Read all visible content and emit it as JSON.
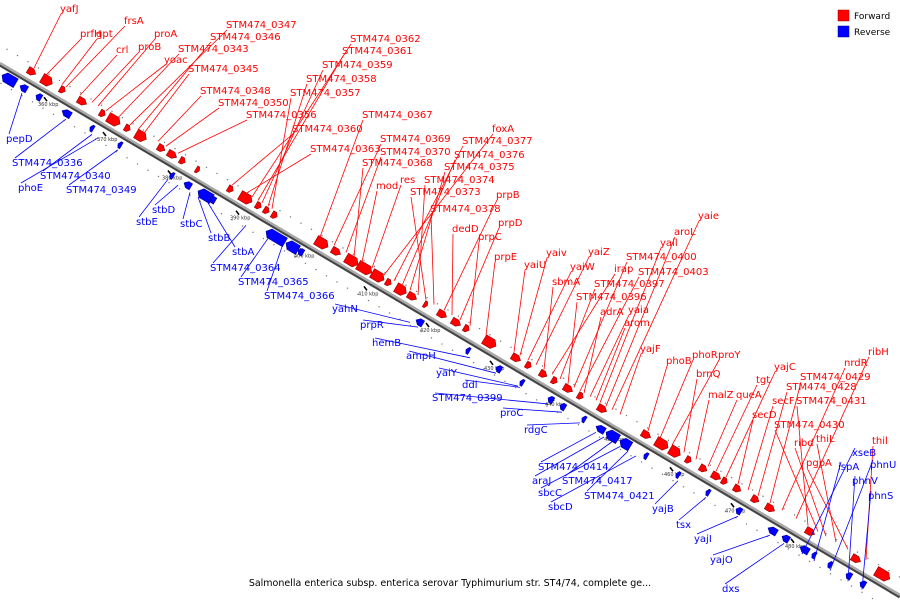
{
  "legend": {
    "forward_label": "Forward",
    "reverse_label": "Reverse",
    "forward_color": "#ff0000",
    "reverse_color": "#0000ff"
  },
  "backbone_color": "#888888",
  "caption": "Salmonella enterica subsp. enterica serovar Typhimurium str. ST4/74, complete ge...",
  "scale_ticks": [
    "360 kbp",
    "370 kbp",
    "380 kbp",
    "390 kbp",
    "400 kbp",
    "410 kbp",
    "420 kbp",
    "430 kbp",
    "440 kbp",
    "450 kbp",
    "460 kbp",
    "470 kbp",
    "480 kbp"
  ],
  "forward_genes": [
    "yafJ",
    "prfH",
    "gpt",
    "frsA",
    "crl",
    "proB",
    "proA",
    "yoac",
    "STM474_0343",
    "STM474_0347",
    "STM474_0346",
    "STM474_0345",
    "STM474_0348",
    "STM474_0350",
    "STM474_0356",
    "STM474_0360",
    "STM474_0363",
    "STM474_0362",
    "STM474_0361",
    "STM474_0359",
    "STM474_0358",
    "STM474_0357",
    "STM474_0367",
    "STM474_0369",
    "STM474_0370",
    "STM474_0368",
    "mod",
    "res",
    "foxA",
    "STM474_0377",
    "STM474_0376",
    "STM474_0375",
    "STM474_0374",
    "STM474_0373",
    "STM474_0378",
    "prpB",
    "dedD",
    "prpD",
    "prpC",
    "prpE",
    "yaiU",
    "yaiv",
    "yaiW",
    "yaiZ",
    "sbmA",
    "irap",
    "STM474_0397",
    "STM474_0396",
    "STM474_0400",
    "STM474_0403",
    "adrA",
    "yaia",
    "arom",
    "yail",
    "aroL",
    "yaie",
    "yajF",
    "phoB",
    "phoR",
    "proY",
    "brnQ",
    "malZ",
    "queA",
    "tgt",
    "yajC",
    "secD",
    "secF",
    "STM474_0428",
    "STM474_0429",
    "nrdR",
    "ribH",
    "STM474_0431",
    "STM474_0430",
    "ribd",
    "thiL",
    "pgpA",
    "thil"
  ],
  "reverse_genes": [
    "pepD",
    "STM474_0336",
    "STM474_0340",
    "phoE",
    "STM474_0349",
    "stbE",
    "stbD",
    "stbC",
    "stbB",
    "stbA",
    "STM474_0364",
    "STM474_0365",
    "STM474_0366",
    "yahN",
    "prpR",
    "hemB",
    "ampH",
    "yaiY",
    "ddl",
    "STM474_0399",
    "proC",
    "rdgC",
    "STM474_0414",
    "araJ",
    "STM474_0417",
    "sbcC",
    "STM474_0421",
    "sbcD",
    "yajB",
    "tsx",
    "yajI",
    "yajO",
    "dxs",
    "xseB",
    "ispA",
    "phnU",
    "phnV",
    "phnS"
  ]
}
